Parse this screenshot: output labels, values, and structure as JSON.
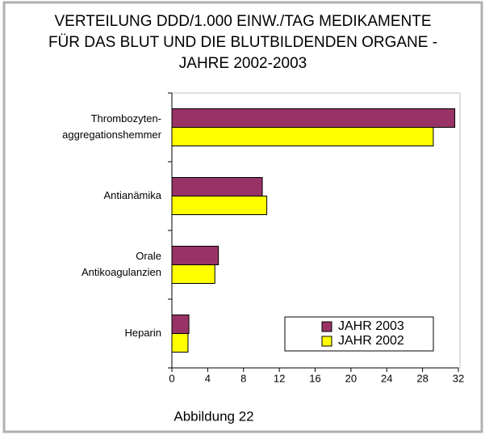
{
  "chart_data": {
    "type": "hbar",
    "title": [
      "VERTEILUNG DDD/1.000 EINW./TAG MEDIKAMENTE",
      "FÜR DAS BLUT UND DIE BLUTBILDENDEN ORGANE -",
      "JAHRE 2002-2003"
    ],
    "categories": [
      [
        "Thrombozyten-",
        "aggregationshemmer"
      ],
      [
        "Antianämika"
      ],
      [
        "Orale",
        "Antikoagulanzien"
      ],
      [
        "Heparin"
      ]
    ],
    "series": [
      {
        "name": "JAHR 2003",
        "color": "#993366",
        "values": [
          31.6,
          10.1,
          5.2,
          1.9
        ]
      },
      {
        "name": "JAHR 2002",
        "color": "#ffff00",
        "values": [
          29.2,
          10.6,
          4.8,
          1.8
        ]
      }
    ],
    "xlim": [
      0,
      32
    ],
    "xticks": [
      0,
      4,
      8,
      12,
      16,
      20,
      24,
      28,
      32
    ],
    "legend": "lower right",
    "caption": "Abbildung 22"
  }
}
